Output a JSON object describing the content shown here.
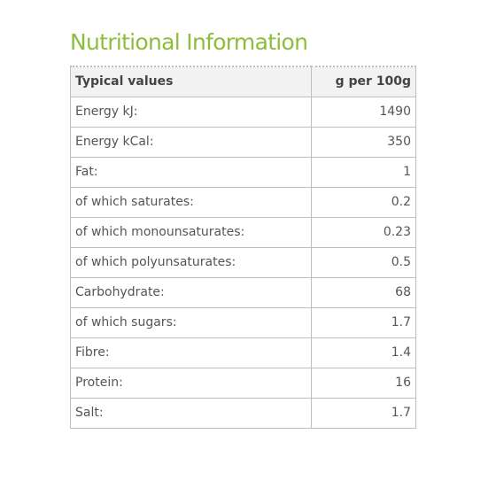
{
  "title": "Nutritional Information",
  "table": {
    "headers": [
      "Typical values",
      "g per 100g"
    ],
    "rows": [
      {
        "label": "Energy kJ:",
        "value": "1490"
      },
      {
        "label": "Energy kCal:",
        "value": "350"
      },
      {
        "label": "Fat:",
        "value": "1"
      },
      {
        "label": "of which saturates:",
        "value": "0.2"
      },
      {
        "label": "of which monounsaturates:",
        "value": "0.23"
      },
      {
        "label": "of which polyunsaturates:",
        "value": "0.5"
      },
      {
        "label": "Carbohydrate:",
        "value": "68"
      },
      {
        "label": "of which sugars:",
        "value": "1.7"
      },
      {
        "label": "Fibre:",
        "value": "1.4"
      },
      {
        "label": "Protein:",
        "value": "16"
      },
      {
        "label": "Salt:",
        "value": "1.7"
      }
    ]
  },
  "colors": {
    "heading": "#8cbd3c",
    "header_background": "#f2f2f2",
    "border": "#bfbfbf",
    "text": "#555555"
  }
}
